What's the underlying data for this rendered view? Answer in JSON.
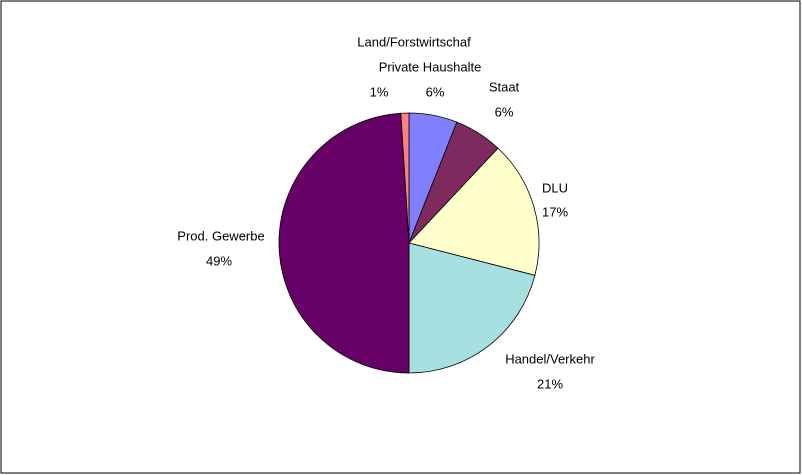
{
  "chart_data": {
    "type": "pie",
    "categories": [
      "Private Haushalte",
      "Staat",
      "DLU",
      "Handel/Verkehr",
      "Prod. Gewerbe",
      "Land/Forstwirtschaf"
    ],
    "values": [
      6,
      6,
      17,
      21,
      49,
      1
    ],
    "value_labels": [
      "6%",
      "6%",
      "17%",
      "21%",
      "49%",
      "1%"
    ],
    "colors": [
      "#8080ff",
      "#7f2a5f",
      "#ffffcc",
      "#a6e0e0",
      "#660066",
      "#ff8080"
    ]
  }
}
